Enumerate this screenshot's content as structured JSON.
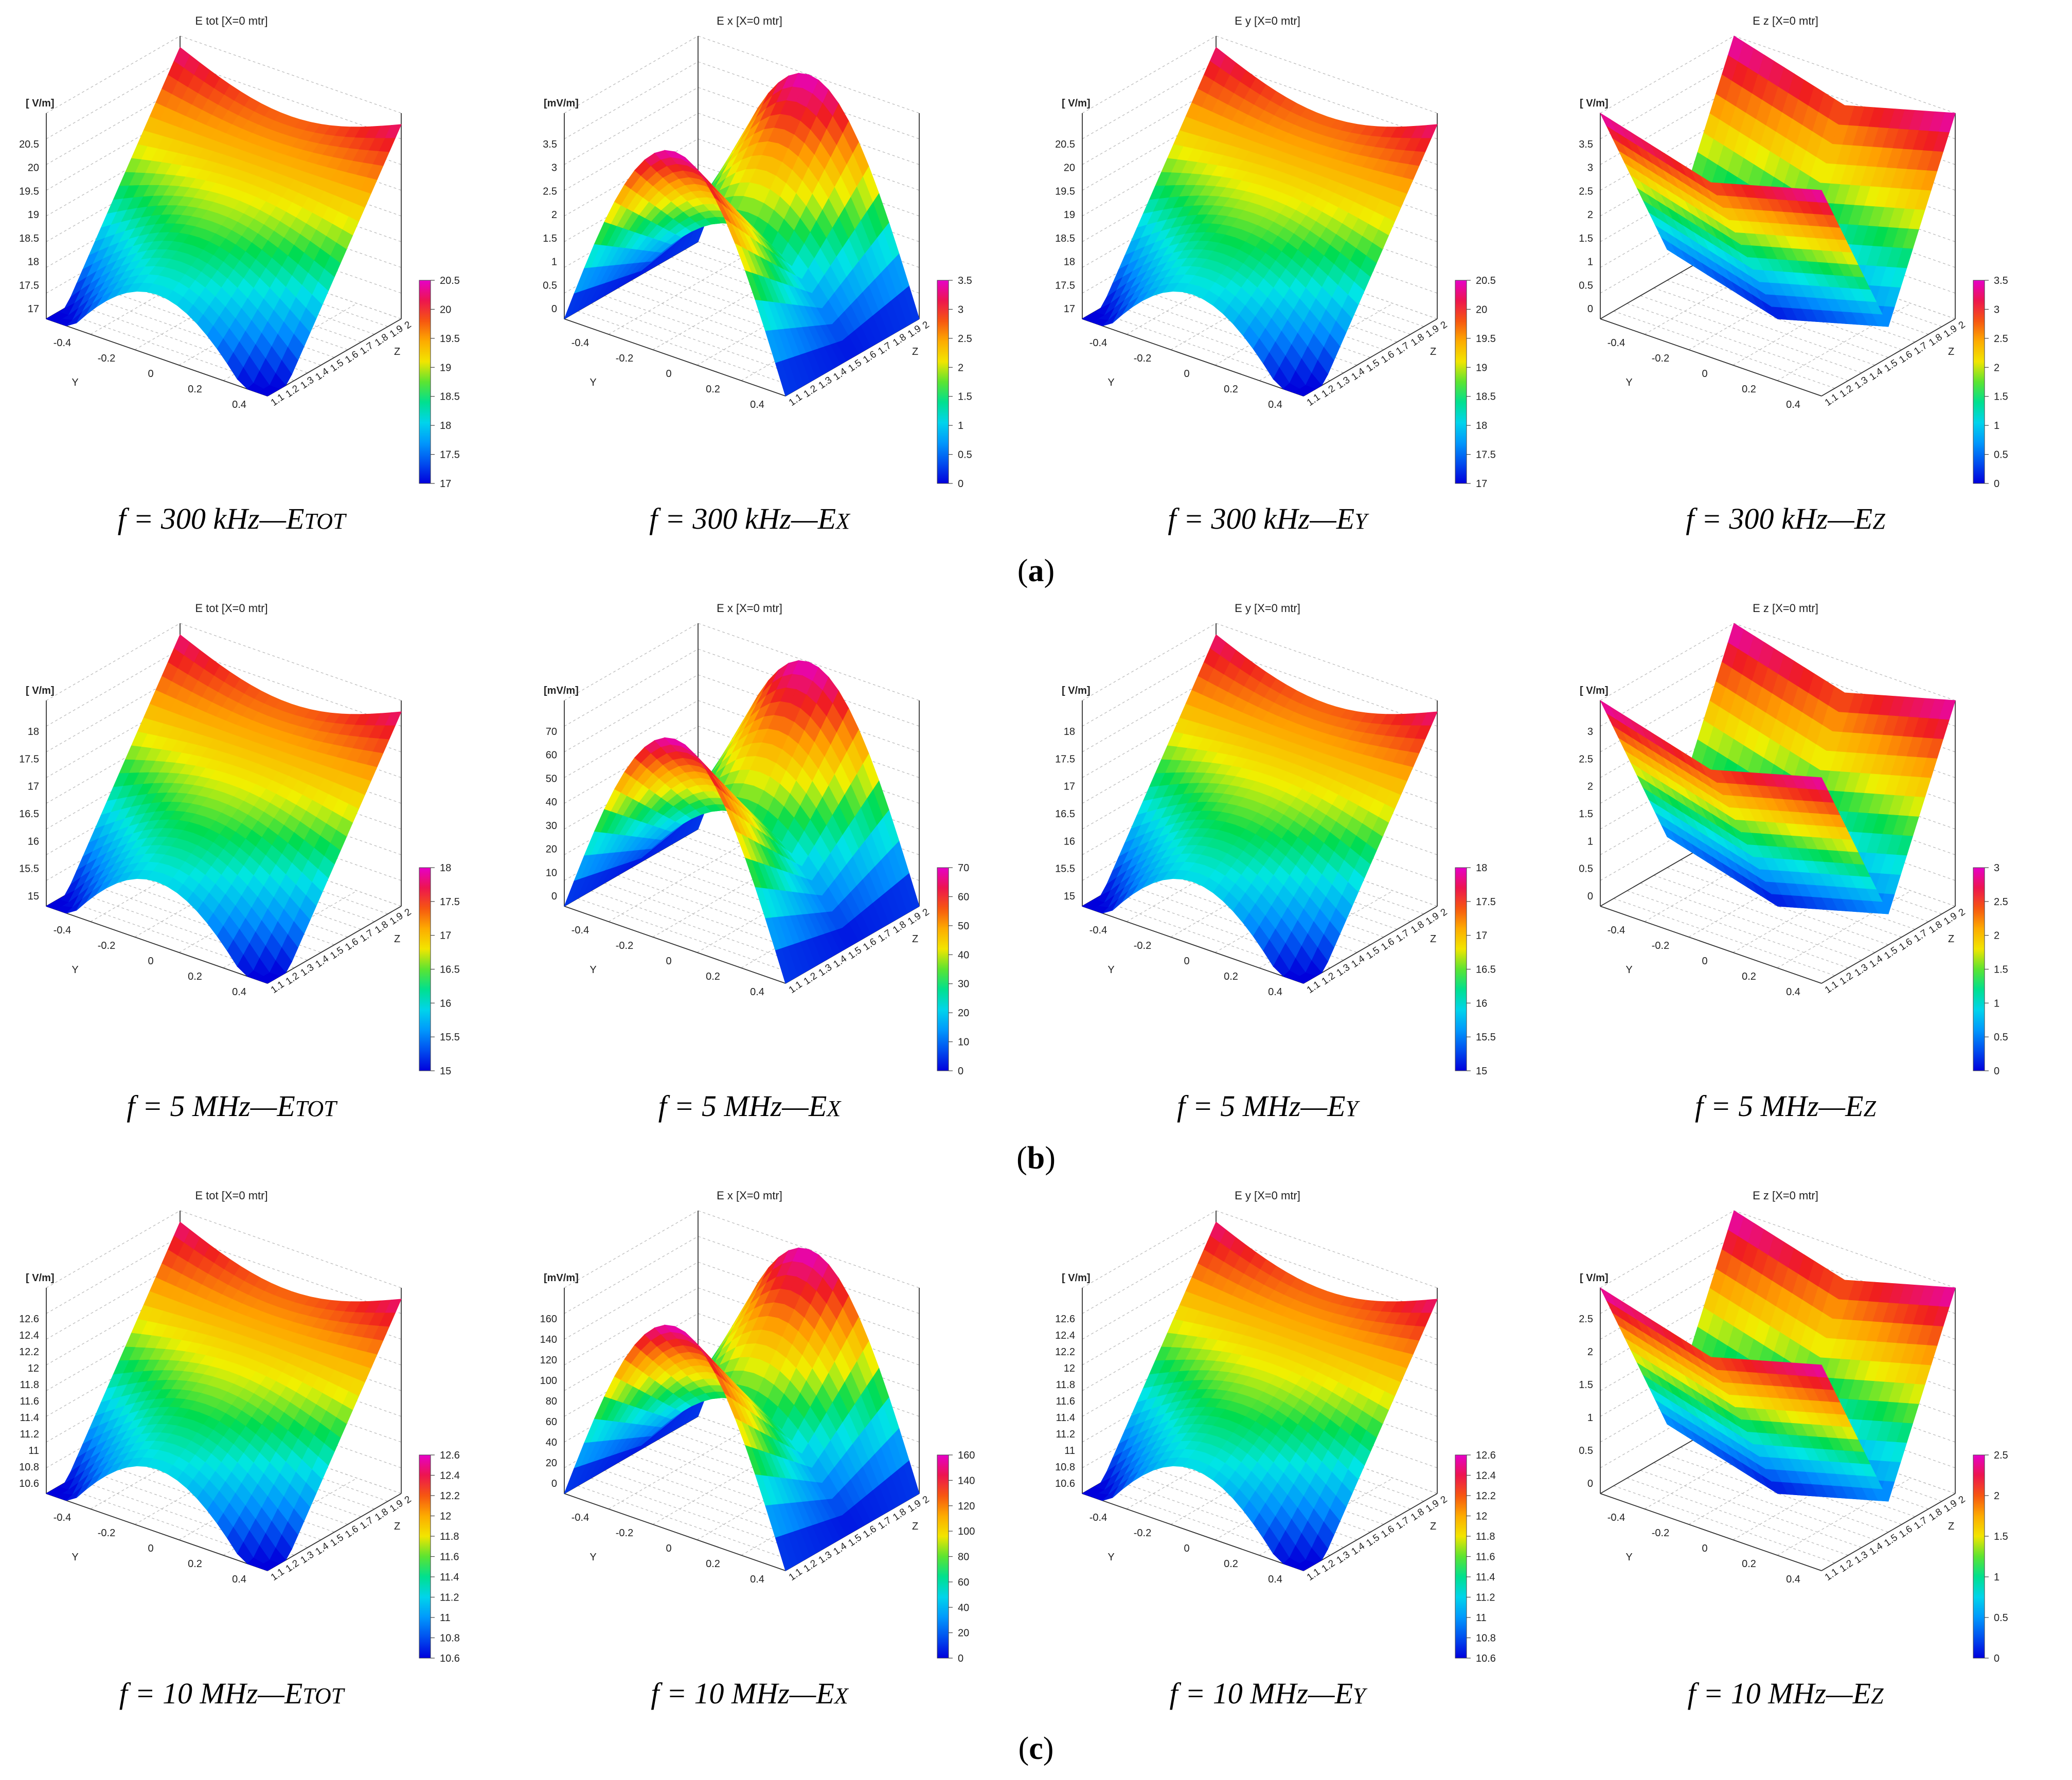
{
  "figure": {
    "rows": [
      {
        "label": "a",
        "charts": [
          {
            "title": "E tot [X=0 mtr]",
            "unit": "[ V/m]",
            "caption_prefix": "f = 300 kHz—E",
            "caption_sub": "TOT",
            "ticks": [
              "17",
              "17.5",
              "18",
              "18.5",
              "19",
              "19.5",
              "20",
              "20.5"
            ],
            "cbar_ticks": [
              "17",
              "17.5",
              "18",
              "18.5",
              "19",
              "19.5",
              "20",
              "20.5"
            ],
            "shape": "saddle",
            "min": 17,
            "max": 20.5
          },
          {
            "title": "E x [X=0 mtr]",
            "unit": "[mV/m]",
            "caption_prefix": "f = 300 kHz—E",
            "caption_sub": "X",
            "ticks": [
              "0",
              "0.5",
              "1",
              "1.5",
              "2",
              "2.5",
              "3",
              "3.5"
            ],
            "cbar_ticks": [
              "0",
              "0.5",
              "1",
              "1.5",
              "2",
              "2.5",
              "3",
              "3.5"
            ],
            "shape": "ridge",
            "min": 0,
            "max": 3.5
          },
          {
            "title": "E y [X=0 mtr]",
            "unit": "[ V/m]",
            "caption_prefix": "f = 300 kHz—E",
            "caption_sub": "Y",
            "ticks": [
              "17",
              "17.5",
              "18",
              "18.5",
              "19",
              "19.5",
              "20",
              "20.5"
            ],
            "cbar_ticks": [
              "17",
              "17.5",
              "18",
              "18.5",
              "19",
              "19.5",
              "20",
              "20.5"
            ],
            "shape": "saddle",
            "min": 17,
            "max": 20.5
          },
          {
            "title": "E z [X=0 mtr]",
            "unit": "[ V/m]",
            "caption_prefix": "f = 300 kHz—E",
            "caption_sub": "Z",
            "ticks": [
              "0",
              "0.5",
              "1",
              "1.5",
              "2",
              "2.5",
              "3",
              "3.5"
            ],
            "cbar_ticks": [
              "0",
              "0.5",
              "1",
              "1.5",
              "2",
              "2.5",
              "3",
              "3.5"
            ],
            "shape": "vshape",
            "min": 0,
            "max": 3.5
          }
        ]
      },
      {
        "label": "b",
        "charts": [
          {
            "title": "E tot [X=0 mtr]",
            "unit": "[ V/m]",
            "caption_prefix": "f = 5 MHz—E",
            "caption_sub": "TOT",
            "ticks": [
              "15",
              "15.5",
              "16",
              "16.5",
              "17",
              "17.5",
              "18"
            ],
            "cbar_ticks": [
              "15",
              "15.5",
              "16",
              "16.5",
              "17",
              "17.5",
              "18"
            ],
            "shape": "saddle",
            "min": 15,
            "max": 18
          },
          {
            "title": "E x [X=0 mtr]",
            "unit": "[mV/m]",
            "caption_prefix": "f = 5 MHz—E",
            "caption_sub": "X",
            "ticks": [
              "0",
              "10",
              "20",
              "30",
              "40",
              "50",
              "60",
              "70"
            ],
            "cbar_ticks": [
              "0",
              "10",
              "20",
              "30",
              "40",
              "50",
              "60",
              "70"
            ],
            "shape": "ridge",
            "min": 0,
            "max": 70
          },
          {
            "title": "E y [X=0 mtr]",
            "unit": "[ V/m]",
            "caption_prefix": "f = 5 MHz—E",
            "caption_sub": "Y",
            "ticks": [
              "15",
              "15.5",
              "16",
              "16.5",
              "17",
              "17.5",
              "18"
            ],
            "cbar_ticks": [
              "15",
              "15.5",
              "16",
              "16.5",
              "17",
              "17.5",
              "18"
            ],
            "shape": "saddle",
            "min": 15,
            "max": 18
          },
          {
            "title": "E z [X=0 mtr]",
            "unit": "[ V/m]",
            "caption_prefix": "f = 5 MHz—E",
            "caption_sub": "Z",
            "ticks": [
              "0",
              "0.5",
              "1",
              "1.5",
              "2",
              "2.5",
              "3"
            ],
            "cbar_ticks": [
              "0",
              "0.5",
              "1",
              "1.5",
              "2",
              "2.5",
              "3"
            ],
            "shape": "vshape",
            "min": 0,
            "max": 3
          }
        ]
      },
      {
        "label": "c",
        "charts": [
          {
            "title": "E tot [X=0 mtr]",
            "unit": "[ V/m]",
            "caption_prefix": "f = 10 MHz—E",
            "caption_sub": "TOT",
            "ticks": [
              "10.6",
              "10.8",
              "11",
              "11.2",
              "11.4",
              "11.6",
              "11.8",
              "12",
              "12.2",
              "12.4",
              "12.6"
            ],
            "cbar_ticks": [
              "10.6",
              "10.8",
              "11",
              "11.2",
              "11.4",
              "11.6",
              "11.8",
              "12",
              "12.2",
              "12.4",
              "12.6"
            ],
            "shape": "saddle",
            "min": 10.6,
            "max": 12.6
          },
          {
            "title": "E x [X=0 mtr]",
            "unit": "[mV/m]",
            "caption_prefix": "f = 10 MHz—E",
            "caption_sub": "X",
            "ticks": [
              "0",
              "20",
              "40",
              "60",
              "80",
              "100",
              "120",
              "140",
              "160"
            ],
            "cbar_ticks": [
              "0",
              "20",
              "40",
              "60",
              "80",
              "100",
              "120",
              "140",
              "160"
            ],
            "shape": "ridge",
            "min": 0,
            "max": 160
          },
          {
            "title": "E y [X=0 mtr]",
            "unit": "[ V/m]",
            "caption_prefix": "f = 10 MHz—E",
            "caption_sub": "Y",
            "ticks": [
              "10.6",
              "10.8",
              "11",
              "11.2",
              "11.4",
              "11.6",
              "11.8",
              "12",
              "12.2",
              "12.4",
              "12.6"
            ],
            "cbar_ticks": [
              "10.6",
              "10.8",
              "11",
              "11.2",
              "11.4",
              "11.6",
              "11.8",
              "12",
              "12.2",
              "12.4",
              "12.6"
            ],
            "shape": "saddle",
            "min": 10.6,
            "max": 12.6
          },
          {
            "title": "E z [X=0 mtr]",
            "unit": "[ V/m]",
            "caption_prefix": "f = 10 MHz—E",
            "caption_sub": "Z",
            "ticks": [
              "0",
              "0.5",
              "1",
              "1.5",
              "2",
              "2.5"
            ],
            "cbar_ticks": [
              "0",
              "0.5",
              "1",
              "1.5",
              "2",
              "2.5"
            ],
            "shape": "vshape",
            "min": 0,
            "max": 2.5
          }
        ]
      }
    ],
    "y_axis": {
      "label": "Y",
      "ticks": [
        "-0.4",
        "-0.2",
        "0",
        "0.2",
        "0.4"
      ]
    },
    "z_axis": {
      "label": "Z",
      "ticks": [
        "1.1",
        "1.2",
        "1.3",
        "1.4",
        "1.5",
        "1.6",
        "1.7",
        "1.8",
        "1.9",
        "2"
      ]
    }
  },
  "chart_data": [
    {
      "type": "surface",
      "title": "E tot [X=0 mtr]",
      "frequency": "300 kHz",
      "component": "E TOT",
      "unit": "V/m",
      "xlabel": "Y",
      "ylabel": "Z",
      "x_range": [
        -0.5,
        0.5
      ],
      "y_range": [
        1.1,
        2.0
      ],
      "value_range": [
        17,
        20.5
      ]
    },
    {
      "type": "surface",
      "title": "E x [X=0 mtr]",
      "frequency": "300 kHz",
      "component": "E X",
      "unit": "mV/m",
      "xlabel": "Y",
      "ylabel": "Z",
      "x_range": [
        -0.5,
        0.5
      ],
      "y_range": [
        1.1,
        2.0
      ],
      "value_range": [
        0,
        3.5
      ]
    },
    {
      "type": "surface",
      "title": "E y [X=0 mtr]",
      "frequency": "300 kHz",
      "component": "E Y",
      "unit": "V/m",
      "xlabel": "Y",
      "ylabel": "Z",
      "x_range": [
        -0.5,
        0.5
      ],
      "y_range": [
        1.1,
        2.0
      ],
      "value_range": [
        17,
        20.5
      ]
    },
    {
      "type": "surface",
      "title": "E z [X=0 mtr]",
      "frequency": "300 kHz",
      "component": "E Z",
      "unit": "V/m",
      "xlabel": "Y",
      "ylabel": "Z",
      "x_range": [
        -0.5,
        0.5
      ],
      "y_range": [
        1.1,
        2.0
      ],
      "value_range": [
        0,
        3.5
      ]
    },
    {
      "type": "surface",
      "title": "E tot [X=0 mtr]",
      "frequency": "5 MHz",
      "component": "E TOT",
      "unit": "V/m",
      "xlabel": "Y",
      "ylabel": "Z",
      "x_range": [
        -0.5,
        0.5
      ],
      "y_range": [
        1.1,
        2.0
      ],
      "value_range": [
        15,
        18
      ]
    },
    {
      "type": "surface",
      "title": "E x [X=0 mtr]",
      "frequency": "5 MHz",
      "component": "E X",
      "unit": "mV/m",
      "xlabel": "Y",
      "ylabel": "Z",
      "x_range": [
        -0.5,
        0.5
      ],
      "y_range": [
        1.1,
        2.0
      ],
      "value_range": [
        0,
        70
      ]
    },
    {
      "type": "surface",
      "title": "E y [X=0 mtr]",
      "frequency": "5 MHz",
      "component": "E Y",
      "unit": "V/m",
      "xlabel": "Y",
      "ylabel": "Z",
      "x_range": [
        -0.5,
        0.5
      ],
      "y_range": [
        1.1,
        2.0
      ],
      "value_range": [
        15,
        18
      ]
    },
    {
      "type": "surface",
      "title": "E z [X=0 mtr]",
      "frequency": "5 MHz",
      "component": "E Z",
      "unit": "V/m",
      "xlabel": "Y",
      "ylabel": "Z",
      "x_range": [
        -0.5,
        0.5
      ],
      "y_range": [
        1.1,
        2.0
      ],
      "value_range": [
        0,
        3
      ]
    },
    {
      "type": "surface",
      "title": "E tot [X=0 mtr]",
      "frequency": "10 MHz",
      "component": "E TOT",
      "unit": "V/m",
      "xlabel": "Y",
      "ylabel": "Z",
      "x_range": [
        -0.5,
        0.5
      ],
      "y_range": [
        1.1,
        2.0
      ],
      "value_range": [
        10.6,
        12.6
      ]
    },
    {
      "type": "surface",
      "title": "E x [X=0 mtr]",
      "frequency": "10 MHz",
      "component": "E X",
      "unit": "mV/m",
      "xlabel": "Y",
      "ylabel": "Z",
      "x_range": [
        -0.5,
        0.5
      ],
      "y_range": [
        1.1,
        2.0
      ],
      "value_range": [
        0,
        160
      ]
    },
    {
      "type": "surface",
      "title": "E y [X=0 mtr]",
      "frequency": "10 MHz",
      "component": "E Y",
      "unit": "V/m",
      "xlabel": "Y",
      "ylabel": "Z",
      "x_range": [
        -0.5,
        0.5
      ],
      "y_range": [
        1.1,
        2.0
      ],
      "value_range": [
        10.6,
        12.6
      ]
    },
    {
      "type": "surface",
      "title": "E z [X=0 mtr]",
      "frequency": "10 MHz",
      "component": "E Z",
      "unit": "V/m",
      "xlabel": "Y",
      "ylabel": "Z",
      "x_range": [
        -0.5,
        0.5
      ],
      "y_range": [
        1.1,
        2.0
      ],
      "value_range": [
        0,
        2.5
      ]
    }
  ]
}
